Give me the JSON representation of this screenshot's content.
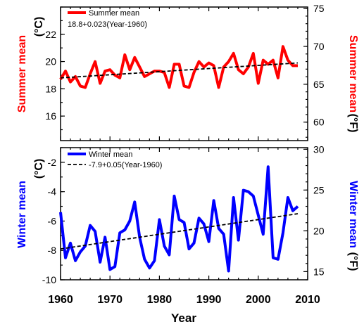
{
  "chart_data": [
    {
      "type": "line",
      "color": "#ff0000",
      "ylabel_left": "Summer mean",
      "ylabel_left_unit": "(°C)",
      "ylabel_right": "Summer mean",
      "ylabel_right_unit": "(°F)",
      "xlim": [
        1960,
        2010
      ],
      "ylim": [
        14.2,
        24.0
      ],
      "yticks_left": [
        "16",
        "18",
        "20",
        "22"
      ],
      "yticks_right": [
        "60",
        "65",
        "70",
        "75"
      ],
      "series": [
        {
          "name": "Summer mean",
          "color": "#ff0000",
          "x": [
            1960,
            1961,
            1962,
            1963,
            1964,
            1965,
            1966,
            1967,
            1968,
            1969,
            1970,
            1971,
            1972,
            1973,
            1974,
            1975,
            1976,
            1977,
            1978,
            1979,
            1980,
            1981,
            1982,
            1983,
            1984,
            1985,
            1986,
            1987,
            1988,
            1989,
            1990,
            1991,
            1992,
            1993,
            1994,
            1995,
            1996,
            1997,
            1998,
            1999,
            2000,
            2001,
            2002,
            2003,
            2004,
            2005,
            2006,
            2007,
            2008
          ],
          "values": [
            18.7,
            19.3,
            18.5,
            18.9,
            18.2,
            18.1,
            19.1,
            20.0,
            18.4,
            19.3,
            19.4,
            19.0,
            18.8,
            20.5,
            19.4,
            20.3,
            19.6,
            18.9,
            19.1,
            19.3,
            19.3,
            19.2,
            18.1,
            19.8,
            19.8,
            18.2,
            18.1,
            19.2,
            20.0,
            19.6,
            19.9,
            19.7,
            18.1,
            19.6,
            20.0,
            20.6,
            19.4,
            19.1,
            19.6,
            20.6,
            18.4,
            20.1,
            19.8,
            20.1,
            18.8,
            21.1,
            20.1,
            19.7,
            19.7
          ]
        },
        {
          "name": "18.8+0.023(Year-1960)",
          "style": "dashed",
          "color": "#000000",
          "x": [
            1960,
            2008
          ],
          "values": [
            18.8,
            19.9
          ]
        }
      ]
    },
    {
      "type": "line",
      "color": "#0000ff",
      "ylabel_left": "Winter mean",
      "ylabel_left_unit": "(°C)",
      "ylabel_right": "Winter mean",
      "ylabel_right_unit": "(°F)",
      "xlabel": "Year",
      "xlim": [
        1960,
        2010
      ],
      "ylim": [
        -10.0,
        -1.0
      ],
      "xticks": [
        "1960",
        "1970",
        "1980",
        "1990",
        "2000",
        "2010"
      ],
      "yticks_left": [
        "-10",
        "-8",
        "-6",
        "-4",
        "-2"
      ],
      "yticks_right": [
        "15",
        "20",
        "25",
        "30"
      ],
      "series": [
        {
          "name": "Winter mean",
          "color": "#0000ff",
          "x": [
            1960,
            1961,
            1962,
            1963,
            1964,
            1965,
            1966,
            1967,
            1968,
            1969,
            1970,
            1971,
            1972,
            1973,
            1974,
            1975,
            1976,
            1977,
            1978,
            1979,
            1980,
            1981,
            1982,
            1983,
            1984,
            1985,
            1986,
            1987,
            1988,
            1989,
            1990,
            1991,
            1992,
            1993,
            1994,
            1995,
            1996,
            1997,
            1998,
            1999,
            2000,
            2001,
            2002,
            2003,
            2004,
            2005,
            2006,
            2007,
            2008
          ],
          "values": [
            -5.4,
            -8.5,
            -7.5,
            -8.7,
            -8.1,
            -7.7,
            -6.3,
            -6.7,
            -8.8,
            -7.1,
            -9.3,
            -9.1,
            -6.8,
            -6.6,
            -6.0,
            -4.7,
            -7.1,
            -8.6,
            -9.2,
            -8.7,
            -5.9,
            -7.7,
            -8.3,
            -4.3,
            -5.9,
            -6.1,
            -7.9,
            -7.5,
            -5.8,
            -6.2,
            -7.4,
            -4.6,
            -6.5,
            -6.9,
            -9.4,
            -4.4,
            -7.3,
            -3.9,
            -4.0,
            -4.3,
            -5.6,
            -6.9,
            -2.3,
            -8.5,
            -8.6,
            -6.8,
            -4.4,
            -5.3,
            -5.0
          ]
        },
        {
          "name": "-7.9+0.05(Year-1960)",
          "style": "dashed",
          "color": "#000000",
          "x": [
            1960,
            2008
          ],
          "values": [
            -7.9,
            -5.5
          ]
        }
      ]
    }
  ],
  "summer_title": "Summer mean",
  "summer_unit": "(°C)",
  "summer_right_title": "Summer mean",
  "summer_right_unit": "(°F)",
  "winter_title": "Winter mean",
  "winter_unit": "(°C)",
  "winter_right_title": "Winter mean",
  "winter_right_unit": "(°F)",
  "xlabel": "Year"
}
